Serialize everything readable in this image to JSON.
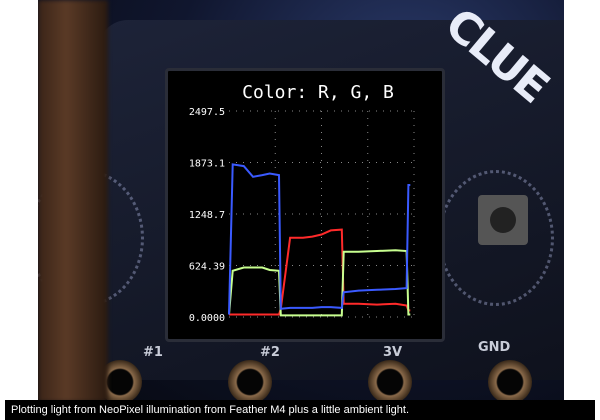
{
  "photo": {
    "silkscreen": [
      "#1",
      "#2",
      "3V",
      "GND"
    ],
    "logo": "CLUE"
  },
  "caption": "Plotting light from NeoPixel illumination from Feather M4 plus a little ambient light.",
  "chart_data": {
    "type": "line",
    "title": "Color: R, G, B",
    "ylim": [
      0,
      2497.5
    ],
    "yticks": [
      "2497.5",
      "1873.1",
      "1248.7",
      "624.39",
      "0.0000"
    ],
    "ytick_values": [
      2497.5,
      1873.1,
      1248.7,
      624.39,
      0
    ],
    "grid": true,
    "series_colors": [
      "#ff2a2a",
      "#c8ff90",
      "#3a5aff"
    ],
    "x": [
      0,
      2,
      8,
      13,
      18,
      22,
      27,
      28,
      33,
      40,
      45,
      50,
      55,
      61,
      62,
      70,
      80,
      90,
      96,
      97,
      98
    ],
    "series": [
      {
        "values": [
          30,
          30,
          30,
          30,
          30,
          30,
          30,
          100,
          960,
          960,
          975,
          1000,
          1050,
          1060,
          160,
          160,
          150,
          160,
          140,
          80,
          80
        ]
      },
      {
        "values": [
          30,
          560,
          600,
          600,
          600,
          570,
          560,
          20,
          20,
          20,
          20,
          20,
          20,
          20,
          790,
          790,
          800,
          810,
          800,
          30,
          30
        ]
      },
      {
        "values": [
          30,
          1850,
          1830,
          1700,
          1720,
          1740,
          1720,
          100,
          110,
          110,
          110,
          120,
          120,
          110,
          300,
          320,
          330,
          340,
          350,
          1600,
          1600
        ]
      }
    ]
  }
}
